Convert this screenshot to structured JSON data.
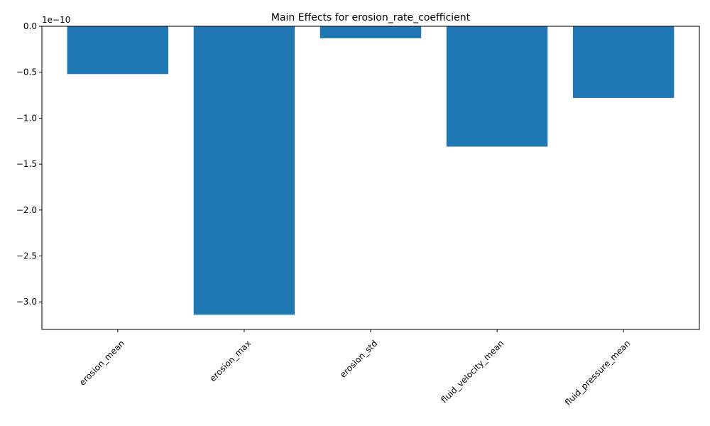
{
  "chart_data": {
    "type": "bar",
    "title": "Main Effects for erosion_rate_coefficient",
    "xlabel": "",
    "ylabel": "",
    "offset_text": "1e−10",
    "categories": [
      "erosion_mean",
      "erosion_max",
      "erosion_std",
      "fluid_velocity_mean",
      "fluid_pressure_mean"
    ],
    "values": [
      -5.2e-11,
      -3.14e-10,
      -1.3e-11,
      -1.31e-10,
      -7.8e-11
    ],
    "ylim": [
      -3.3e-10,
      0
    ],
    "yticks": [
      0,
      -5e-11,
      -1e-10,
      -1.5e-10,
      -2e-10,
      -2.5e-10,
      -3e-10
    ],
    "ytick_labels": [
      "0.0",
      "−0.5",
      "−1.0",
      "−1.5",
      "−2.0",
      "−2.5",
      "−3.0"
    ],
    "bar_color": "#1f77b4",
    "grid": false,
    "legend": "none"
  }
}
